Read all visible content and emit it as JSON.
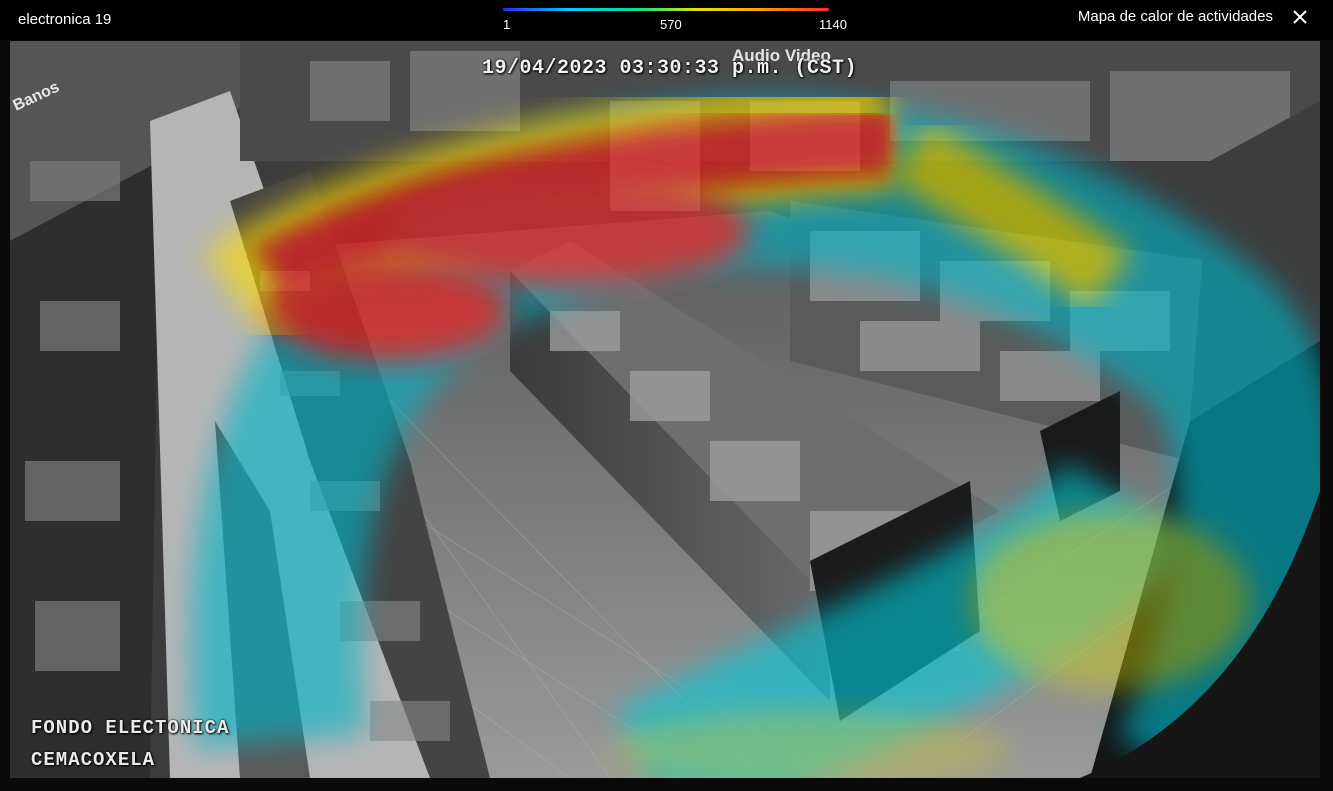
{
  "header": {
    "camera_name": "electronica 19",
    "panel_title": "Mapa de calor de actividades",
    "close_icon": "close-icon"
  },
  "legend": {
    "min": "1",
    "mid": "570",
    "max": "1140",
    "gradient_colors": [
      "#2b2bff",
      "#00c8ff",
      "#00e08a",
      "#e6e600",
      "#ff9900",
      "#ff2a2a"
    ]
  },
  "video": {
    "timestamp": "19/04/2023 03:30:33 p.m. (CST)",
    "overlay_line1": "FONDO ELECTONICA",
    "overlay_line2": "CEMACOXELA",
    "store_sign_1": "Banos",
    "store_sign_2": "Audio Video"
  }
}
